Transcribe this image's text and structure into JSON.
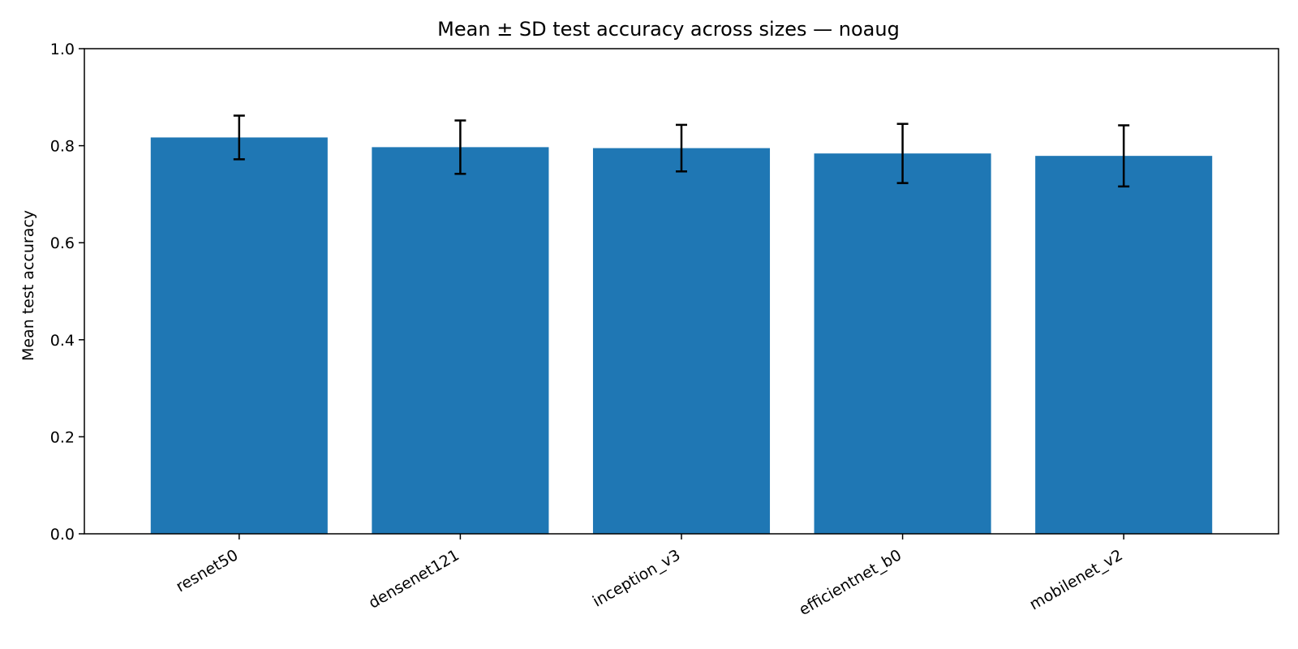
{
  "chart_data": {
    "type": "bar",
    "title": "Mean ± SD test accuracy across sizes — noaug",
    "xlabel": "",
    "ylabel": "Mean test accuracy",
    "ylim": [
      0,
      1.0
    ],
    "yticks": [
      "0.0",
      "0.2",
      "0.4",
      "0.6",
      "0.8",
      "1.0"
    ],
    "categories": [
      "resnet50",
      "densenet121",
      "inception_v3",
      "efficientnet_b0",
      "mobilenet_v2"
    ],
    "values": [
      0.817,
      0.797,
      0.795,
      0.784,
      0.779
    ],
    "errors": [
      0.045,
      0.055,
      0.048,
      0.061,
      0.063
    ],
    "bar_color": "#1f77b4",
    "error_color": "#000000",
    "grid": false,
    "legend": "none"
  }
}
